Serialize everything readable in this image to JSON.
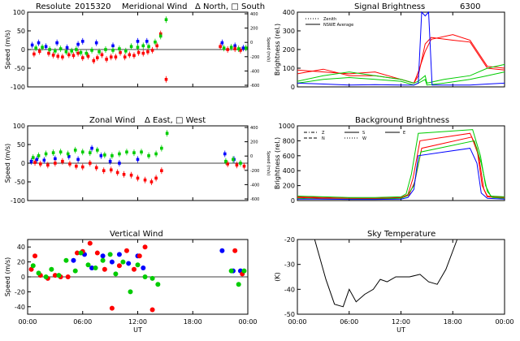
{
  "figure": {
    "site": "Resolute",
    "date": "2015320"
  },
  "chart_data": [
    {
      "id": "meridional",
      "type": "scatter",
      "title": "Meridional Wind",
      "legend_text": "Δ North, □ South",
      "ylabel": "Speed (m/s)",
      "ylabel_right": "Speed (m/s)",
      "ylim": [
        -100,
        100
      ],
      "yticks": [
        "100",
        "50",
        "0",
        "-50",
        "-100"
      ],
      "yticks_right": [
        "400",
        "200",
        "0",
        "-200",
        "-400",
        "-600"
      ],
      "xlim": [
        0,
        24
      ],
      "series": [
        {
          "color": "#0000ff",
          "x": [
            0.5,
            1.2,
            2.0,
            3.2,
            4.3,
            5.5,
            6.0,
            7.5,
            9.3,
            12.0,
            13.0,
            21.2,
            22.6,
            23.5
          ],
          "y": [
            12,
            18,
            8,
            18,
            5,
            14,
            22,
            18,
            10,
            22,
            22,
            18,
            10,
            4
          ]
        },
        {
          "color": "#ff0000",
          "x": [
            0.7,
            1.3,
            2.3,
            2.8,
            3.3,
            3.8,
            4.5,
            5.0,
            5.5,
            6.0,
            6.6,
            7.2,
            7.6,
            8.1,
            8.6,
            9.1,
            9.6,
            10.1,
            10.6,
            11.1,
            11.6,
            12.1,
            12.6,
            13.1,
            13.6,
            14.1,
            14.5,
            15.1,
            21.0,
            21.8,
            22.6,
            23.2
          ],
          "y": [
            -12,
            -5,
            -10,
            -15,
            -18,
            -20,
            -14,
            -16,
            -10,
            -22,
            -18,
            -30,
            -22,
            -14,
            -26,
            -20,
            -20,
            -8,
            -20,
            -14,
            -16,
            -8,
            -10,
            -6,
            -2,
            10,
            42,
            -80,
            8,
            0,
            2,
            -2
          ]
        },
        {
          "color": "#00cc00",
          "x": [
            0.9,
            1.6,
            2.4,
            3.0,
            3.6,
            4.2,
            4.8,
            5.3,
            5.8,
            6.4,
            7.0,
            7.8,
            8.5,
            9.3,
            10.0,
            10.7,
            11.3,
            12.0,
            12.6,
            13.2,
            13.9,
            14.5,
            15.1,
            21.4,
            22.2,
            23.0,
            23.8
          ],
          "y": [
            4,
            6,
            0,
            -4,
            2,
            -6,
            -4,
            0,
            -8,
            -10,
            -2,
            -6,
            0,
            -2,
            2,
            -4,
            8,
            6,
            10,
            8,
            20,
            36,
            80,
            4,
            6,
            2,
            4
          ]
        }
      ]
    },
    {
      "id": "signal",
      "type": "line",
      "title": "Signal Brightness",
      "wavelength": "6300",
      "ylabel": "Brightness (rel.)",
      "ylim": [
        0,
        400
      ],
      "yticks": [
        "400",
        "300",
        "200",
        "100",
        "0"
      ],
      "xlim": [
        0,
        24
      ],
      "legend": [
        {
          "label": "Zenith",
          "style": "dotted"
        },
        {
          "label": "NSWE Average",
          "style": "solid"
        }
      ],
      "series": [
        {
          "color": "#ff0000",
          "x": [
            0,
            3,
            6,
            9,
            12,
            13.5,
            14,
            14.8,
            15.5,
            18,
            20,
            22,
            24
          ],
          "y": [
            90,
            80,
            70,
            80,
            40,
            20,
            60,
            230,
            265,
            250,
            240,
            100,
            90
          ]
        },
        {
          "color": "#ff0000",
          "x": [
            0,
            3,
            6,
            9,
            12,
            13.5,
            14,
            14.8,
            15.5,
            18,
            20,
            22,
            24
          ],
          "y": [
            70,
            95,
            60,
            60,
            40,
            20,
            80,
            190,
            255,
            280,
            250,
            110,
            100
          ]
        },
        {
          "color": "#00cc00",
          "x": [
            0,
            3,
            6,
            9,
            12,
            13.5,
            14,
            14.8,
            15,
            17,
            20,
            22,
            24
          ],
          "y": [
            30,
            60,
            80,
            60,
            40,
            20,
            30,
            60,
            20,
            40,
            60,
            100,
            120
          ]
        },
        {
          "color": "#00cc00",
          "x": [
            0,
            3,
            6,
            9,
            12,
            13.5,
            14,
            14.8,
            15,
            17,
            20,
            22,
            24
          ],
          "y": [
            20,
            40,
            50,
            40,
            30,
            10,
            20,
            40,
            10,
            20,
            40,
            60,
            80
          ]
        },
        {
          "color": "#0000ff",
          "x": [
            0,
            3,
            6,
            9,
            12,
            13.5,
            14,
            14.4,
            14.8,
            15.2,
            15.6,
            17,
            20,
            22,
            24
          ],
          "y": [
            20,
            15,
            10,
            12,
            10,
            10,
            20,
            400,
            380,
            400,
            10,
            10,
            10,
            15,
            20
          ]
        }
      ]
    },
    {
      "id": "zonal",
      "type": "scatter",
      "title": "Zonal Wind",
      "legend_text": "Δ East, □ West",
      "ylabel": "Speed (m/s)",
      "ylabel_right": "Speed (m/s)",
      "ylim": [
        -100,
        100
      ],
      "yticks": [
        "100",
        "50",
        "0",
        "-50",
        "-100"
      ],
      "yticks_right": [
        "400",
        "200",
        "0",
        "-200",
        "-400",
        "-600"
      ],
      "xlim": [
        0,
        24
      ],
      "series": [
        {
          "color": "#0000ff",
          "x": [
            0.4,
            1.0,
            1.8,
            3.0,
            4.5,
            5.5,
            7.0,
            8.0,
            9.0,
            10.0,
            12.0,
            21.5,
            22.5
          ],
          "y": [
            5,
            10,
            8,
            12,
            18,
            10,
            40,
            20,
            5,
            0,
            10,
            25,
            10
          ]
        },
        {
          "color": "#ff0000",
          "x": [
            0.8,
            1.4,
            2.2,
            3.0,
            3.8,
            4.6,
            5.3,
            6.0,
            6.8,
            7.5,
            8.3,
            9.1,
            9.8,
            10.5,
            11.3,
            12.0,
            12.8,
            13.5,
            14.0,
            14.6,
            21.8,
            22.8,
            23.6
          ],
          "y": [
            2,
            -2,
            -5,
            0,
            5,
            -2,
            -8,
            -10,
            0,
            -12,
            -20,
            -18,
            -25,
            -30,
            -32,
            -40,
            -45,
            -50,
            -40,
            -20,
            -2,
            -5,
            -8
          ]
        },
        {
          "color": "#00cc00",
          "x": [
            0.6,
            1.2,
            2.0,
            2.8,
            3.6,
            4.4,
            5.2,
            6.0,
            6.8,
            7.6,
            8.4,
            9.2,
            10.0,
            10.8,
            11.6,
            12.4,
            13.2,
            14.0,
            14.6,
            15.2,
            21.6,
            22.4,
            23.2
          ],
          "y": [
            15,
            20,
            25,
            28,
            30,
            25,
            35,
            30,
            28,
            35,
            22,
            20,
            25,
            30,
            28,
            30,
            20,
            25,
            40,
            80,
            5,
            10,
            0
          ]
        }
      ]
    },
    {
      "id": "background",
      "type": "line",
      "title": "Background Brightness",
      "ylabel": "Brightness (rel.)",
      "ylim": [
        0,
        1000
      ],
      "yticks": [
        "1000",
        "800",
        "600",
        "400",
        "200",
        "0"
      ],
      "xlim": [
        0,
        24
      ],
      "legend": [
        {
          "label": "Z",
          "style": "dashdot"
        },
        {
          "label": "N",
          "style": "dashed"
        },
        {
          "label": "S",
          "style": "solid"
        },
        {
          "label": "W",
          "style": "dotted"
        },
        {
          "label": "E",
          "style": "solid"
        }
      ],
      "series": [
        {
          "color": "#ff0000",
          "x": [
            0,
            3,
            6,
            9,
            12,
            12.8,
            13.4,
            14.2,
            20.0,
            20.8,
            21.4,
            22,
            24
          ],
          "y": [
            50,
            40,
            30,
            30,
            40,
            80,
            300,
            800,
            900,
            700,
            200,
            60,
            40
          ]
        },
        {
          "color": "#ff0000",
          "x": [
            0,
            3,
            6,
            9,
            12,
            12.9,
            13.6,
            14.4,
            20.2,
            21.0,
            21.6,
            22,
            24
          ],
          "y": [
            40,
            30,
            30,
            25,
            35,
            70,
            250,
            700,
            850,
            600,
            150,
            50,
            30
          ]
        },
        {
          "color": "#00cc00",
          "x": [
            0,
            3,
            6,
            9,
            12,
            12.6,
            13.2,
            14.0,
            20.3,
            21.2,
            21.8,
            22.4,
            24
          ],
          "y": [
            60,
            50,
            40,
            40,
            50,
            90,
            350,
            900,
            950,
            600,
            200,
            60,
            50
          ]
        },
        {
          "color": "#00cc00",
          "x": [
            0,
            3,
            6,
            9,
            12,
            12.7,
            13.5,
            14.3,
            20.5,
            21.3,
            22.0,
            22.6,
            24
          ],
          "y": [
            30,
            20,
            20,
            20,
            30,
            60,
            200,
            650,
            800,
            500,
            120,
            40,
            30
          ]
        },
        {
          "color": "#0000ff",
          "x": [
            0,
            3,
            6,
            9,
            12,
            12.8,
            13.5,
            14.0,
            20.0,
            20.8,
            21.3,
            22,
            24
          ],
          "y": [
            20,
            20,
            15,
            15,
            20,
            40,
            150,
            600,
            700,
            500,
            100,
            30,
            20
          ]
        }
      ]
    },
    {
      "id": "vertical",
      "type": "scatter",
      "title": "Vertical Wind",
      "ylabel": "Speed (m/s)",
      "ylim": [
        -50,
        50
      ],
      "yticks": [
        "40",
        "20",
        "0",
        "-20",
        "-40"
      ],
      "xlim": [
        0,
        24
      ],
      "xticks": [
        "00:00",
        "06:00",
        "12:00",
        "18:00",
        "00:00"
      ],
      "xlabel": "UT",
      "series": [
        {
          "color": "#0000ff",
          "x": [
            5.0,
            6.2,
            7.0,
            8.2,
            9.2,
            10.0,
            11.0,
            12.0,
            12.6,
            21.2,
            22.4,
            23.2
          ],
          "y": [
            22,
            30,
            12,
            28,
            20,
            30,
            18,
            28,
            12,
            35,
            8,
            8
          ]
        },
        {
          "color": "#ff0000",
          "x": [
            0.4,
            0.8,
            1.4,
            2.2,
            3.0,
            3.6,
            4.4,
            5.4,
            6.0,
            6.8,
            7.6,
            8.4,
            9.2,
            10.0,
            10.8,
            11.6,
            12.2,
            12.8,
            13.6,
            22.6,
            23.4
          ],
          "y": [
            10,
            28,
            2,
            -2,
            2,
            0,
            0,
            32,
            34,
            45,
            32,
            10,
            -42,
            15,
            35,
            10,
            28,
            40,
            -44,
            35,
            4
          ]
        },
        {
          "color": "#00cc00",
          "x": [
            0.6,
            1.2,
            2.0,
            2.6,
            3.4,
            4.2,
            5.2,
            5.8,
            6.6,
            7.4,
            8.2,
            9.0,
            9.6,
            10.4,
            11.2,
            12.0,
            12.8,
            13.6,
            14.2,
            22.2,
            23.0,
            23.6
          ],
          "y": [
            15,
            5,
            0,
            10,
            2,
            22,
            8,
            32,
            16,
            12,
            22,
            30,
            4,
            20,
            -20,
            16,
            0,
            -2,
            -10,
            8,
            -10,
            8
          ]
        }
      ]
    },
    {
      "id": "sky",
      "type": "line",
      "title": "Sky Temperature",
      "ylabel": "(K)",
      "ylim": [
        -50,
        -20
      ],
      "yticks": [
        "-20",
        "-30",
        "-40",
        "-50"
      ],
      "xlim": [
        0,
        24
      ],
      "xticks": [
        "00:00",
        "06:00",
        "12:00",
        "18:00",
        "00:00"
      ],
      "xlabel": "UT",
      "series": [
        {
          "color": "#000000",
          "x": [
            2.0,
            3.3,
            4.3,
            5.3,
            6.0,
            6.8,
            7.8,
            8.8,
            9.6,
            10.4,
            11.4,
            12.2,
            13.0,
            14.2,
            15.2,
            16.2,
            17.2,
            18.5
          ],
          "y": [
            -20,
            -36,
            -46,
            -47,
            -40,
            -45,
            -42,
            -40,
            -36,
            -37,
            -35,
            -35,
            -35,
            -34,
            -37,
            -38,
            -32,
            -20
          ]
        }
      ]
    }
  ]
}
